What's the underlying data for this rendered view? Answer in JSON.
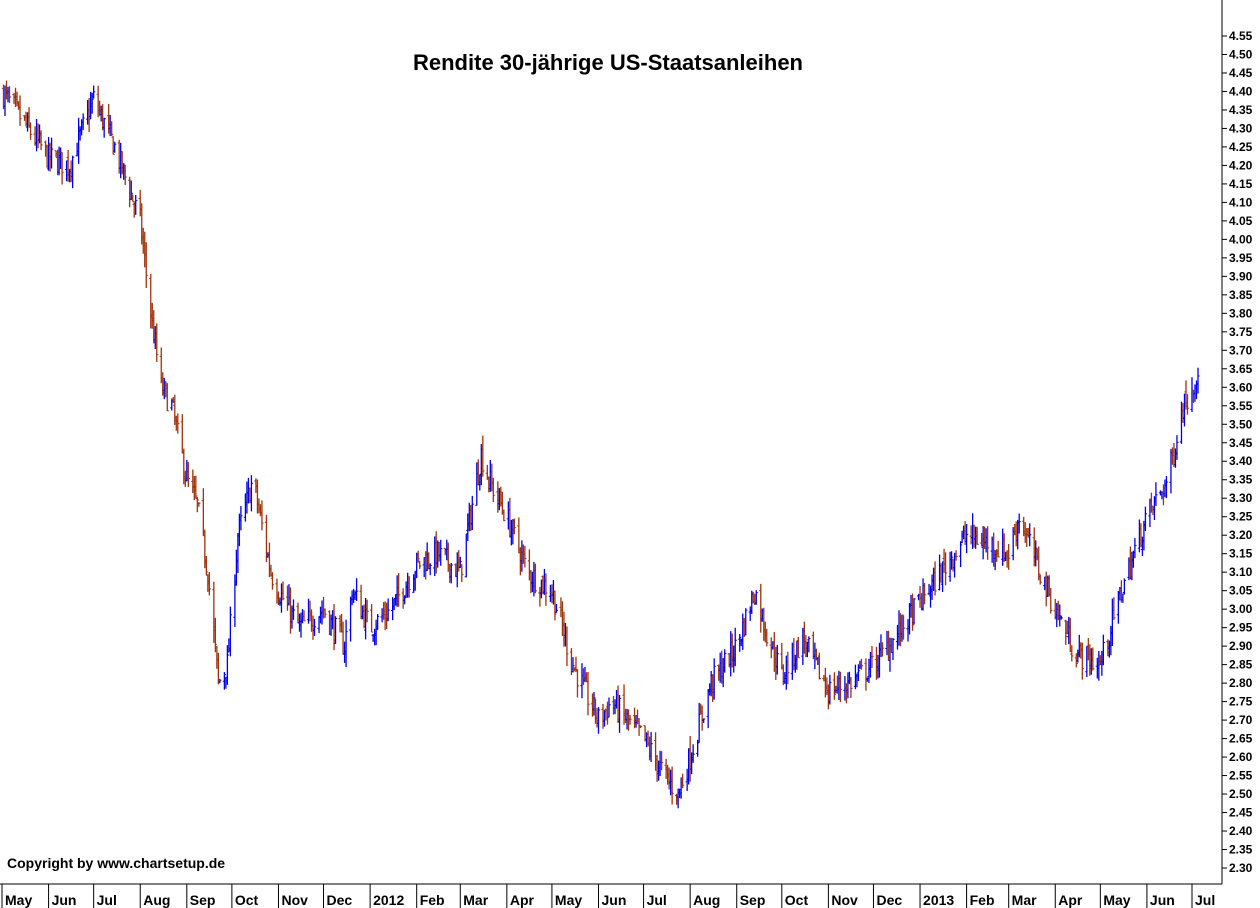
{
  "chart_data": {
    "type": "line",
    "style": "ohlc-bars",
    "title": "Rendite 30-jährige US-Staatsanleihen",
    "copyright": "Copyright by www.chartsetup.de",
    "xlabel": "",
    "ylabel": "",
    "ylim": [
      2.25,
      4.6
    ],
    "y_ticks": [
      "4.55",
      "4.50",
      "4.45",
      "4.40",
      "4.35",
      "4.30",
      "4.25",
      "4.20",
      "4.15",
      "4.10",
      "4.05",
      "4.00",
      "3.95",
      "3.90",
      "3.85",
      "3.80",
      "3.75",
      "3.70",
      "3.65",
      "3.60",
      "3.55",
      "3.50",
      "3.45",
      "3.40",
      "3.35",
      "3.30",
      "3.25",
      "3.20",
      "3.15",
      "3.10",
      "3.05",
      "3.00",
      "2.95",
      "2.90",
      "2.85",
      "2.80",
      "2.75",
      "2.70",
      "2.65",
      "2.60",
      "2.55",
      "2.50",
      "2.45",
      "2.40",
      "2.35",
      "2.30"
    ],
    "x_ticks": [
      "May",
      "Jun",
      "Jul",
      "Aug",
      "Sep",
      "Oct",
      "Nov",
      "Dec",
      "2012",
      "Feb",
      "Mar",
      "Apr",
      "May",
      "Jun",
      "Jul",
      "Aug",
      "Sep",
      "Oct",
      "Nov",
      "Dec",
      "2013",
      "Feb",
      "Mar",
      "Apr",
      "May",
      "Jun",
      "Jul"
    ],
    "grid": false,
    "legend": "none",
    "colors": {
      "up": "#0000ee",
      "down": "#a0330a",
      "axis": "#000000",
      "background": "#ffffff"
    },
    "series": [
      {
        "x": [
          "2011-05-01",
          "2011-05-15",
          "2011-06-01",
          "2011-06-15",
          "2011-07-01",
          "2011-07-15",
          "2011-08-01",
          "2011-08-08",
          "2011-08-15",
          "2011-08-22",
          "2011-09-01",
          "2011-09-08",
          "2011-09-15",
          "2011-09-22",
          "2011-09-28",
          "2011-10-05",
          "2011-10-15",
          "2011-10-27",
          "2011-11-01",
          "2011-11-15",
          "2011-12-01",
          "2011-12-15",
          "2011-12-20",
          "2012-01-01",
          "2012-01-15",
          "2012-02-01",
          "2012-02-15",
          "2012-03-01",
          "2012-03-15",
          "2012-03-20",
          "2012-04-01",
          "2012-04-15",
          "2012-05-01",
          "2012-05-15",
          "2012-06-01",
          "2012-06-10",
          "2012-06-20",
          "2012-07-01",
          "2012-07-15",
          "2012-07-24",
          "2012-08-01",
          "2012-08-15",
          "2012-09-01",
          "2012-09-13",
          "2012-09-20",
          "2012-10-01",
          "2012-10-15",
          "2012-11-01",
          "2012-11-15",
          "2012-12-01",
          "2012-12-15",
          "2013-01-01",
          "2013-01-15",
          "2013-02-01",
          "2013-02-15",
          "2013-03-01",
          "2013-03-08",
          "2013-03-20",
          "2013-04-01",
          "2013-04-15",
          "2013-05-01",
          "2013-05-15",
          "2013-06-01",
          "2013-06-15",
          "2013-06-25",
          "2013-07-01",
          "2013-07-05"
        ],
        "values": [
          4.4,
          4.32,
          4.22,
          4.2,
          4.38,
          4.25,
          4.05,
          3.8,
          3.6,
          3.55,
          3.35,
          3.28,
          3.1,
          2.8,
          2.85,
          3.2,
          3.35,
          3.1,
          3.05,
          2.95,
          3.0,
          2.9,
          3.05,
          2.95,
          3.0,
          3.12,
          3.15,
          3.1,
          3.42,
          3.35,
          3.25,
          3.1,
          3.05,
          2.85,
          2.7,
          2.75,
          2.7,
          2.65,
          2.55,
          2.5,
          2.6,
          2.8,
          2.9,
          3.05,
          2.95,
          2.82,
          2.92,
          2.78,
          2.8,
          2.85,
          2.92,
          3.02,
          3.1,
          3.2,
          3.18,
          3.15,
          3.25,
          3.12,
          3.0,
          2.88,
          2.85,
          3.05,
          3.25,
          3.35,
          3.55,
          3.6,
          3.65
        ]
      }
    ]
  }
}
